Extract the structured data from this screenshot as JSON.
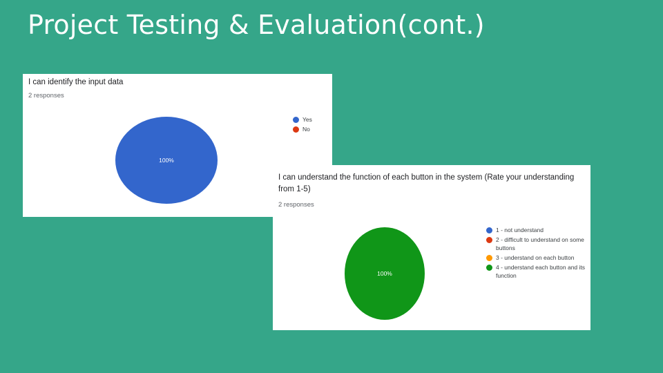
{
  "slide": {
    "title": "Project Testing & Evaluation(cont.)"
  },
  "chart_data": [
    {
      "type": "pie",
      "title": "I can identify the input data",
      "subtitle": "2 responses",
      "categories": [
        "Yes",
        "No"
      ],
      "values": [
        100,
        0
      ],
      "value_labels": [
        "100%"
      ],
      "colors": [
        "#3366cc",
        "#dc3912"
      ],
      "legend_position": "right"
    },
    {
      "type": "pie",
      "title": "I can understand the function of each button in the system (Rate your understanding from 1-5)",
      "subtitle": "2 responses",
      "categories": [
        "1 - not understand",
        "2 - difficult to understand on some buttons",
        "3 - understand on each button",
        "4 - understand each button and its function"
      ],
      "values": [
        0,
        0,
        0,
        100
      ],
      "value_labels": [
        "100%"
      ],
      "colors": [
        "#3366cc",
        "#dc3912",
        "#ff9900",
        "#109618"
      ],
      "legend_position": "right"
    }
  ]
}
